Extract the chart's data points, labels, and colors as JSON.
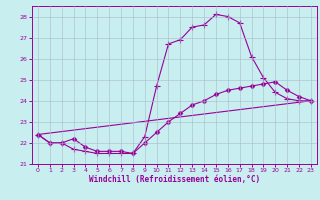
{
  "xlabel": "Windchill (Refroidissement éolien,°C)",
  "bg_color": "#c8eef0",
  "line_color": "#990099",
  "grid_color": "#aabbcc",
  "xlim": [
    -0.5,
    23.5
  ],
  "ylim": [
    21,
    28.5
  ],
  "yticks": [
    21,
    22,
    23,
    24,
    25,
    26,
    27,
    28
  ],
  "xticks": [
    0,
    1,
    2,
    3,
    4,
    5,
    6,
    7,
    8,
    9,
    10,
    11,
    12,
    13,
    14,
    15,
    16,
    17,
    18,
    19,
    20,
    21,
    22,
    23
  ],
  "curve1_x": [
    0,
    1,
    2,
    3,
    4,
    5,
    6,
    7,
    8,
    9,
    10,
    11,
    12,
    13,
    14,
    15,
    16,
    17,
    18,
    19,
    20,
    21,
    22,
    23
  ],
  "curve1_y": [
    22.4,
    22.0,
    22.0,
    21.7,
    21.6,
    21.5,
    21.5,
    21.5,
    21.5,
    22.3,
    24.7,
    26.7,
    26.9,
    27.5,
    27.6,
    28.1,
    28.0,
    27.7,
    26.1,
    25.1,
    24.4,
    24.1,
    24.0,
    24.0
  ],
  "curve2_x": [
    0,
    1,
    2,
    3,
    4,
    5,
    6,
    7,
    8,
    9,
    10,
    11,
    12,
    13,
    14,
    15,
    16,
    17,
    18,
    19,
    20,
    21,
    22,
    23
  ],
  "curve2_y": [
    22.4,
    22.0,
    22.0,
    22.2,
    21.8,
    21.6,
    21.6,
    21.6,
    21.5,
    22.0,
    22.5,
    23.0,
    23.4,
    23.8,
    24.0,
    24.3,
    24.5,
    24.6,
    24.7,
    24.8,
    24.9,
    24.5,
    24.2,
    24.0
  ],
  "curve3_x": [
    0,
    23
  ],
  "curve3_y": [
    22.4,
    24.0
  ],
  "linewidth": 0.8,
  "marker_size_cross": 4,
  "marker_size_diamond": 2.5
}
